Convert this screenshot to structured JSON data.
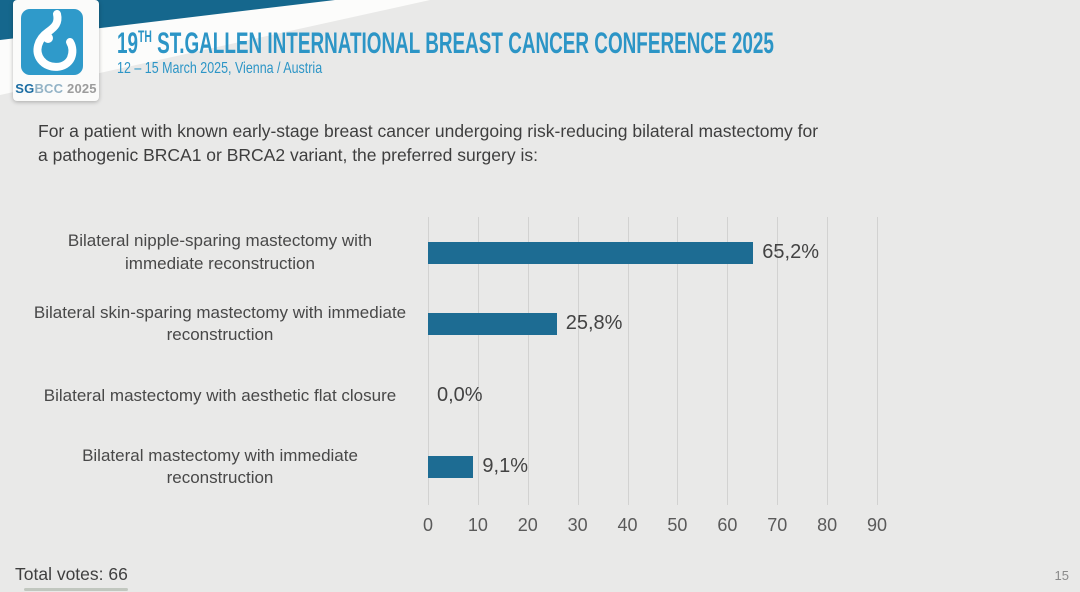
{
  "header": {
    "logo": {
      "icon": "sgbcc-breast-drop-logo",
      "label_sg": "SG",
      "label_bcc": "BCC",
      "label_year": " 2025"
    },
    "title_num": "19",
    "title_sup": "TH",
    "title_rest": " ST.GALLEN INTERNATIONAL BREAST CANCER CONFERENCE 2025",
    "subtitle": "12 – 15 March 2025, Vienna / Austria"
  },
  "question": {
    "full_text": "For a patient with known early-stage breast cancer undergoing risk-reducing bilateral mastectomy for a pathogenic BRCA1 or BRCA2 variant, the preferred surgery is:",
    "lines": [
      "For a patient with known early-stage breast cancer undergoing risk-reducing bilateral mastectomy for",
      "a pathogenic BRCA1 or BRCA2 variant, the preferred surgery is:"
    ]
  },
  "chart_data": {
    "type": "bar",
    "orientation": "horizontal",
    "categories": [
      "Bilateral nipple-sparing mastectomy with immediate reconstruction",
      "Bilateral skin-sparing mastectomy with immediate reconstruction",
      "Bilateral mastectomy with aesthetic flat closure",
      "Bilateral mastectomy with immediate reconstruction"
    ],
    "values": [
      65.2,
      25.8,
      0.0,
      9.1
    ],
    "value_labels": [
      "65,2%",
      "25,8%",
      "0,0%",
      "9,1%"
    ],
    "xlim": [
      0,
      90
    ],
    "xticks": [
      0,
      10,
      20,
      30,
      40,
      50,
      60,
      70,
      80,
      90
    ],
    "grid": true,
    "legend": "none",
    "bar_color": "#1d6c93"
  },
  "footer": {
    "total_votes": "Total votes: 66",
    "page_number": "15"
  },
  "colors": {
    "background": "#e9e9e8",
    "accent_blue": "#2c95c6",
    "dark_teal_band": "#15678d",
    "bar_teal": "#1d6c93",
    "text_dark": "#3e3e3e",
    "grid_gray": "#d2d2d1"
  }
}
